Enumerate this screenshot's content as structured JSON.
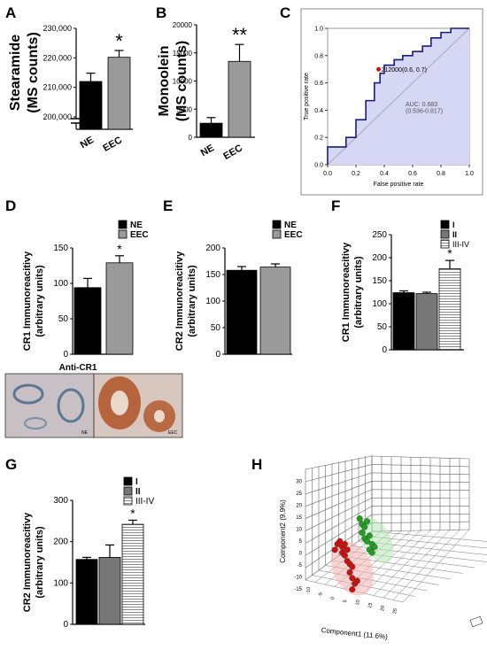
{
  "colors": {
    "black": "#000000",
    "grey": "#9a9a9a",
    "roc_fill": "#d6d6f5",
    "roc_line": "#1c1c7a",
    "red": "#cc1111",
    "green": "#22a022"
  },
  "panels": {
    "A": {
      "letter": "A"
    },
    "B": {
      "letter": "B"
    },
    "C": {
      "letter": "C"
    },
    "D": {
      "letter": "D",
      "caption": "Anti-CR1",
      "img_left": "NE",
      "img_right": "EEC"
    },
    "E": {
      "letter": "E"
    },
    "F": {
      "letter": "F"
    },
    "G": {
      "letter": "G"
    },
    "H": {
      "letter": "H"
    }
  },
  "chart_data": [
    {
      "id": "A",
      "type": "bar",
      "ylabel": "Stearamide\n(MS counts)",
      "categories": [
        "NE",
        "EEC"
      ],
      "values": [
        212000,
        220200
      ],
      "errors": [
        2800,
        2300
      ],
      "colors": [
        "#000000",
        "#9a9a9a"
      ],
      "yticks": [
        "230,000",
        "220,000",
        "210,000",
        "200,000"
      ],
      "ylim": [
        200000,
        230000
      ],
      "axis_break": true,
      "significance": "*"
    },
    {
      "id": "B",
      "type": "bar",
      "ylabel": "Monoolein\n(MS counts)",
      "categories": [
        "NE",
        "EEC"
      ],
      "values": [
        2500,
        13500
      ],
      "errors": [
        1000,
        3000
      ],
      "colors": [
        "#000000",
        "#9a9a9a"
      ],
      "yticks": [
        "0",
        "5000",
        "10000",
        "15000",
        "20000"
      ],
      "ylim": [
        0,
        20000
      ],
      "significance": "**"
    },
    {
      "id": "C",
      "type": "line",
      "xlabel": "False positive rate",
      "ylabel": "True positive rate",
      "xticks": [
        "0.0",
        "0.2",
        "0.4",
        "0.6",
        "0.8",
        "1.0"
      ],
      "yticks": [
        "0.0",
        "0.2",
        "0.4",
        "0.6",
        "0.8",
        "1.0"
      ],
      "xlim": [
        0,
        1
      ],
      "ylim": [
        0,
        1
      ],
      "roc_x": [
        0,
        0,
        0.13,
        0.13,
        0.2,
        0.2,
        0.27,
        0.27,
        0.33,
        0.33,
        0.37,
        0.37,
        0.4,
        0.4,
        0.47,
        0.47,
        0.53,
        0.53,
        0.6,
        0.6,
        0.67,
        0.67,
        0.73,
        0.73,
        0.8,
        0.8,
        0.87,
        0.87,
        1.0
      ],
      "roc_y": [
        0,
        0.13,
        0.13,
        0.2,
        0.2,
        0.33,
        0.33,
        0.47,
        0.47,
        0.6,
        0.6,
        0.67,
        0.67,
        0.73,
        0.73,
        0.77,
        0.77,
        0.8,
        0.8,
        0.83,
        0.83,
        0.87,
        0.87,
        0.93,
        0.93,
        0.97,
        0.97,
        1.0,
        1.0
      ],
      "cutoff": {
        "x": 0.36,
        "y": 0.7,
        "label": "212000(0.6, 0.7)"
      },
      "auc_label": "AUC: 0.683",
      "ci_label": "(0.536-0.817)"
    },
    {
      "id": "D",
      "type": "bar",
      "ylabel": "CR1 Immunoreacitivy\n(arbitrary units)",
      "categories": [
        "NE",
        "EEC"
      ],
      "legend": [
        "NE",
        "EEC"
      ],
      "values": [
        94,
        129
      ],
      "errors": [
        13,
        10
      ],
      "colors": [
        "#000000",
        "#9a9a9a"
      ],
      "yticks": [
        "0",
        "50",
        "100",
        "150"
      ],
      "ylim": [
        0,
        150
      ],
      "significance": "*"
    },
    {
      "id": "E",
      "type": "bar",
      "ylabel": "CR2 Immunoreacitivy\n(arbitrary units)",
      "categories": [
        "NE",
        "EEC"
      ],
      "legend": [
        "NE",
        "EEC"
      ],
      "values": [
        158,
        164
      ],
      "errors": [
        7,
        6
      ],
      "colors": [
        "#000000",
        "#9a9a9a"
      ],
      "yticks": [
        "0",
        "50",
        "100",
        "150",
        "200"
      ],
      "ylim": [
        0,
        200
      ]
    },
    {
      "id": "F",
      "type": "bar",
      "ylabel": "CR1 Immunoreacitivy\n(arbitrary units)",
      "categories": [
        "I",
        "II",
        "III-IV"
      ],
      "legend": [
        "I",
        "II",
        "III-IV"
      ],
      "values": [
        124,
        122,
        176
      ],
      "errors": [
        4,
        3,
        18
      ],
      "colors": [
        "#000000",
        "#777777",
        "#ffffff"
      ],
      "yticks": [
        "0",
        "50",
        "100",
        "150",
        "200",
        "250"
      ],
      "ylim": [
        0,
        250
      ],
      "significance": "*"
    },
    {
      "id": "G",
      "type": "bar",
      "ylabel": "CR2 Immunoreacitivy\n(arbitrary units)",
      "categories": [
        "I",
        "II",
        "III-IV"
      ],
      "legend": [
        "I",
        "II",
        "III-IV"
      ],
      "values": [
        157,
        162,
        242
      ],
      "errors": [
        5,
        30,
        10
      ],
      "colors": [
        "#000000",
        "#777777",
        "#ffffff"
      ],
      "yticks": [
        "0",
        "100",
        "200",
        "300"
      ],
      "ylim": [
        0,
        300
      ],
      "significance": "*"
    },
    {
      "id": "H",
      "type": "scatter",
      "xlabel": "Component1 (11.6%)",
      "ylabel": "Component2 (9.9%)",
      "yticks": [
        "-15",
        "-10",
        "-5",
        "0",
        "5",
        "10",
        "15",
        "20",
        "25",
        "30"
      ],
      "xticks": [
        "-10",
        "-5",
        "0",
        "5",
        "10",
        "15",
        "20",
        "25"
      ],
      "groups": [
        {
          "color": "#cc1111",
          "points": [
            [
              -6,
              6
            ],
            [
              -5,
              8
            ],
            [
              -4,
              9
            ],
            [
              -3,
              7
            ],
            [
              -2,
              8
            ],
            [
              -3,
              5
            ],
            [
              -1,
              6
            ],
            [
              -2,
              4
            ],
            [
              -1,
              2
            ],
            [
              0,
              1
            ],
            [
              1,
              0
            ],
            [
              0,
              -2
            ],
            [
              1,
              -4
            ],
            [
              2,
              -6
            ],
            [
              1,
              -8
            ],
            [
              3,
              -5
            ]
          ]
        },
        {
          "color": "#22a022",
          "points": [
            [
              4,
              17
            ],
            [
              5,
              15
            ],
            [
              6,
              14
            ],
            [
              7,
              16
            ],
            [
              5,
              12
            ],
            [
              6,
              10
            ],
            [
              7,
              9
            ],
            [
              8,
              11
            ],
            [
              9,
              8
            ],
            [
              8,
              6
            ],
            [
              9,
              5
            ],
            [
              10,
              7
            ]
          ]
        }
      ]
    }
  ]
}
